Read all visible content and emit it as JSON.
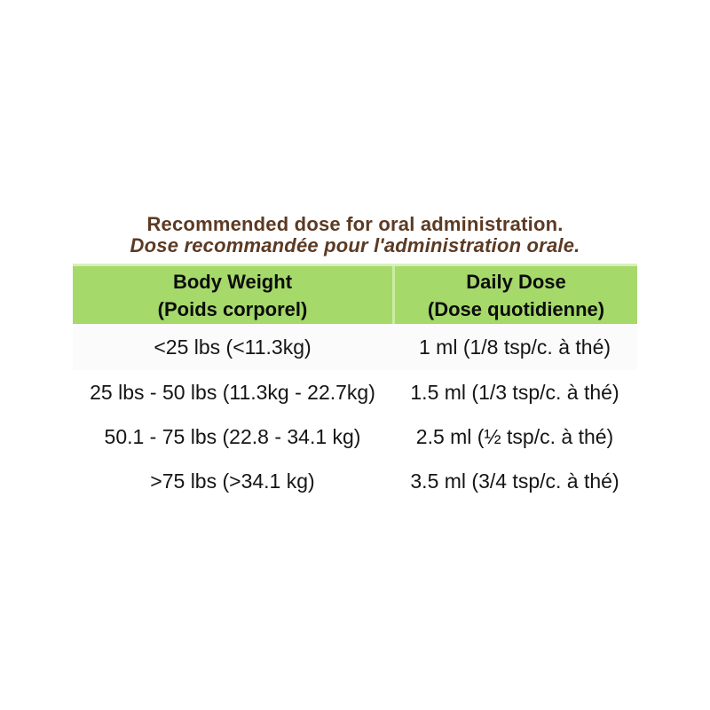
{
  "title": {
    "line_en": "Recommended dose for oral administration.",
    "line_fr": "Dose recommandée pour l'administration orale."
  },
  "table": {
    "headers": [
      {
        "en": "Body Weight",
        "fr": "(Poids corporel)"
      },
      {
        "en": "Daily Dose",
        "fr": "(Dose quotidienne)"
      }
    ],
    "rows": [
      {
        "weight": "<25 lbs (<11.3kg)",
        "dose": "1 ml (1/8 tsp/c. à thé)"
      },
      {
        "weight": "25 lbs - 50 lbs (11.3kg - 22.7kg)",
        "dose": "1.5 ml (1/3 tsp/c. à thé)"
      },
      {
        "weight": "50.1 - 75 lbs (22.8 - 34.1 kg)",
        "dose": "2.5 ml (½ tsp/c. à thé)"
      },
      {
        "weight": ">75 lbs (>34.1 kg)",
        "dose": "3.5 ml (3/4 tsp/c. à thé)"
      }
    ]
  },
  "colors": {
    "header_bg": "#a5d96a",
    "header_divider": "#cdeca2",
    "header_top_strip": "#d8efbc",
    "title_text": "#5c3a23",
    "body_text": "#151515",
    "page_bg": "#ffffff"
  }
}
